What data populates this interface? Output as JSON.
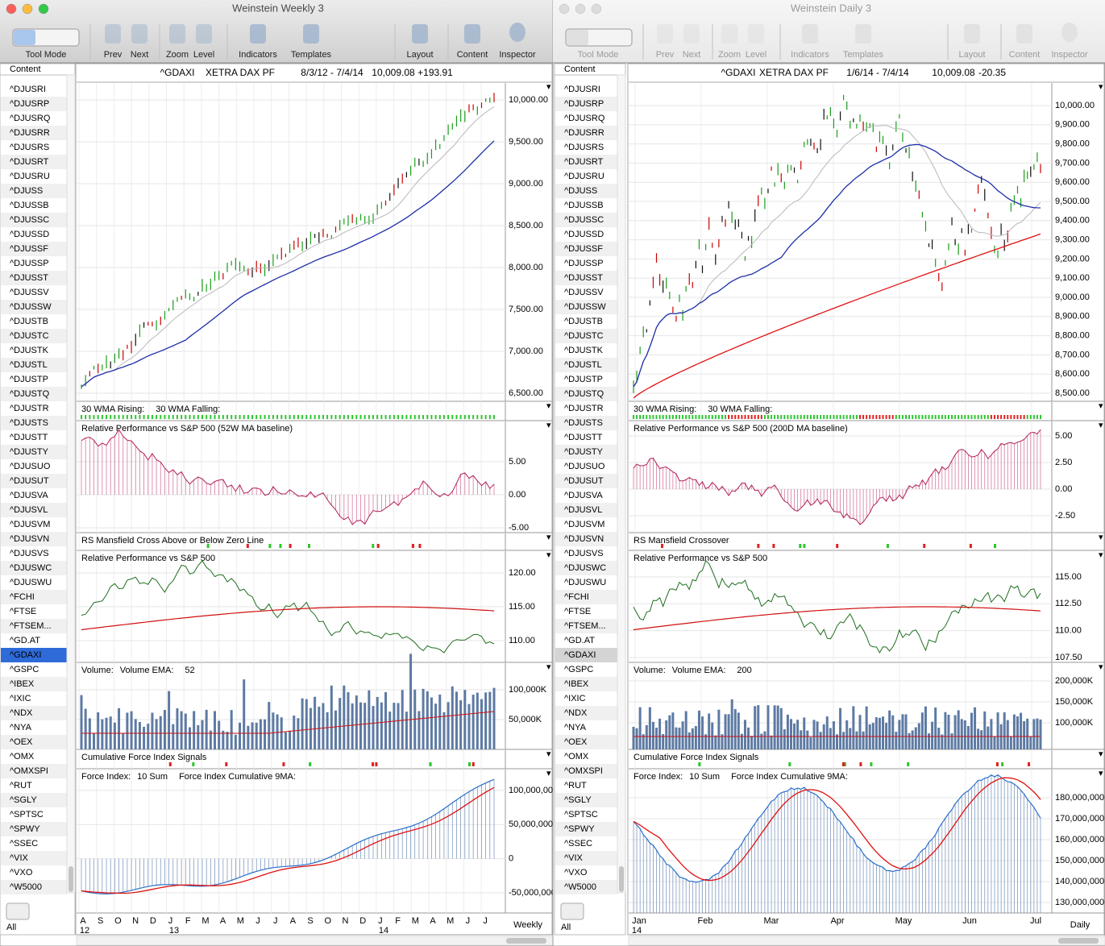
{
  "sidebar_items": [
    "^DJUSRI",
    "^DJUSRP",
    "^DJUSRQ",
    "^DJUSRR",
    "^DJUSRS",
    "^DJUSRT",
    "^DJUSRU",
    "^DJUSS",
    "^DJUSSB",
    "^DJUSSC",
    "^DJUSSD",
    "^DJUSSF",
    "^DJUSSP",
    "^DJUSST",
    "^DJUSSV",
    "^DJUSSW",
    "^DJUSTB",
    "^DJUSTC",
    "^DJUSTK",
    "^DJUSTL",
    "^DJUSTP",
    "^DJUSTQ",
    "^DJUSTR",
    "^DJUSTS",
    "^DJUSTT",
    "^DJUSTY",
    "^DJUSUO",
    "^DJUSUT",
    "^DJUSVA",
    "^DJUSVL",
    "^DJUSVM",
    "^DJUSVN",
    "^DJUSVS",
    "^DJUSWC",
    "^DJUSWU",
    "^FCHI",
    "^FTSE",
    "^FTSEM...",
    "^GD.AT",
    "^GDAXI",
    "^GSPC",
    "^IBEX",
    "^IXIC",
    "^NDX",
    "^NYA",
    "^OEX",
    "^OMX",
    "^OMXSPI",
    "^RUT",
    "^SGLY",
    "^SPTSC",
    "^SPWY",
    "^SSEC",
    "^VIX",
    "^VXO",
    "^W5000"
  ],
  "windows": [
    {
      "title": "Weinstein Weekly 3",
      "toolbar": [
        "Tool Mode",
        "Prev",
        "Next",
        "Zoom",
        "Level",
        "Indicators",
        "Templates",
        "Layout",
        "Content",
        "Inspector"
      ],
      "content_header": "Content",
      "all_label": "All",
      "chart_header": {
        "symbol": "^GDAXI",
        "name": "XETRA DAX PF",
        "range": "8/3/12 - 7/4/14",
        "last": "10,009.08",
        "change": "+193.91"
      },
      "panels": [
        {
          "ticks": [
            "10,000.00",
            "9,500.00",
            "9,000.00",
            "8,500.00",
            "8,000.00",
            "7,500.00",
            "7,000.00",
            "6,500.00"
          ]
        },
        {
          "labels": [
            "30 WMA Rising:",
            "30 WMA Falling:"
          ]
        },
        {
          "labels": [
            "Relative Performance vs S&P 500 (52W MA baseline)"
          ],
          "ticks": [
            "5.00",
            "0.00",
            "-5.00"
          ]
        },
        {
          "labels": [
            "RS Mansfield Cross Above or Below Zero Line"
          ]
        },
        {
          "labels": [
            "Relative Performance vs S&P 500"
          ],
          "ticks": [
            "120.00",
            "115.00",
            "110.00"
          ]
        },
        {
          "labels": [
            "Volume:",
            "Volume EMA:",
            "52"
          ],
          "ticks": [
            "100,000K",
            "50,000K"
          ]
        },
        {
          "labels": [
            "Cumulative Force Index Signals"
          ]
        },
        {
          "labels": [
            "Force Index:",
            "10 Sum",
            "Force Index Cumulative 9MA:"
          ],
          "ticks": [
            "100,000,00",
            "50,000,000",
            "0",
            "-50,000,000"
          ]
        }
      ],
      "x_labels": [
        "A",
        "S",
        "O",
        "N",
        "D",
        "J",
        "F",
        "M",
        "A",
        "M",
        "J",
        "J",
        "A",
        "S",
        "O",
        "N",
        "D",
        "J",
        "F",
        "M",
        "A",
        "M",
        "J",
        "J"
      ],
      "x_years": [
        "12",
        "13",
        "14"
      ],
      "period": "Weekly"
    },
    {
      "title": "Weinstein Daily 3",
      "toolbar": [
        "Tool Mode",
        "Prev",
        "Next",
        "Zoom",
        "Level",
        "Indicators",
        "Templates",
        "Layout",
        "Content",
        "Inspector"
      ],
      "content_header": "Content",
      "all_label": "All",
      "chart_header": {
        "symbol": "^GDAXI",
        "name": "XETRA DAX PF",
        "range": "1/6/14 - 7/4/14",
        "last": "10,009.08",
        "change": "-20.35"
      },
      "panels": [
        {
          "ticks": [
            "10,000.00",
            "9,900.00",
            "9,800.00",
            "9,700.00",
            "9,600.00",
            "9,500.00",
            "9,400.00",
            "9,300.00",
            "9,200.00",
            "9,100.00",
            "9,000.00",
            "8,900.00",
            "8,800.00",
            "8,700.00",
            "8,600.00",
            "8,500.00"
          ]
        },
        {
          "labels": [
            "30 WMA Rising:",
            "30 WMA Falling:"
          ]
        },
        {
          "labels": [
            "Relative Performance vs S&P 500 (200D MA baseline)"
          ],
          "ticks": [
            "5.00",
            "2.50",
            "0.00",
            "-2.50"
          ]
        },
        {
          "labels": [
            "RS Mansfield Crossover"
          ]
        },
        {
          "labels": [
            "Relative Performance vs S&P 500"
          ],
          "ticks": [
            "115.00",
            "112.50",
            "110.00",
            "107.50"
          ]
        },
        {
          "labels": [
            "Volume:",
            "Volume EMA:",
            "200"
          ],
          "ticks": [
            "200,000K",
            "150,000K",
            "100,000K"
          ]
        },
        {
          "labels": [
            "Cumulative Force Index Signals"
          ]
        },
        {
          "labels": [
            "Force Index:",
            "10 Sum",
            "Force Index Cumulative 9MA:"
          ],
          "ticks": [
            "180,000,000",
            "170,000,000",
            "160,000,000",
            "150,000,000",
            "140,000,000",
            "130,000,000"
          ]
        }
      ],
      "x_labels": [
        "Jan",
        "Feb",
        "Mar",
        "Apr",
        "May",
        "Jun",
        "Jul"
      ],
      "x_years": [
        "14"
      ],
      "period": "Daily"
    }
  ]
}
